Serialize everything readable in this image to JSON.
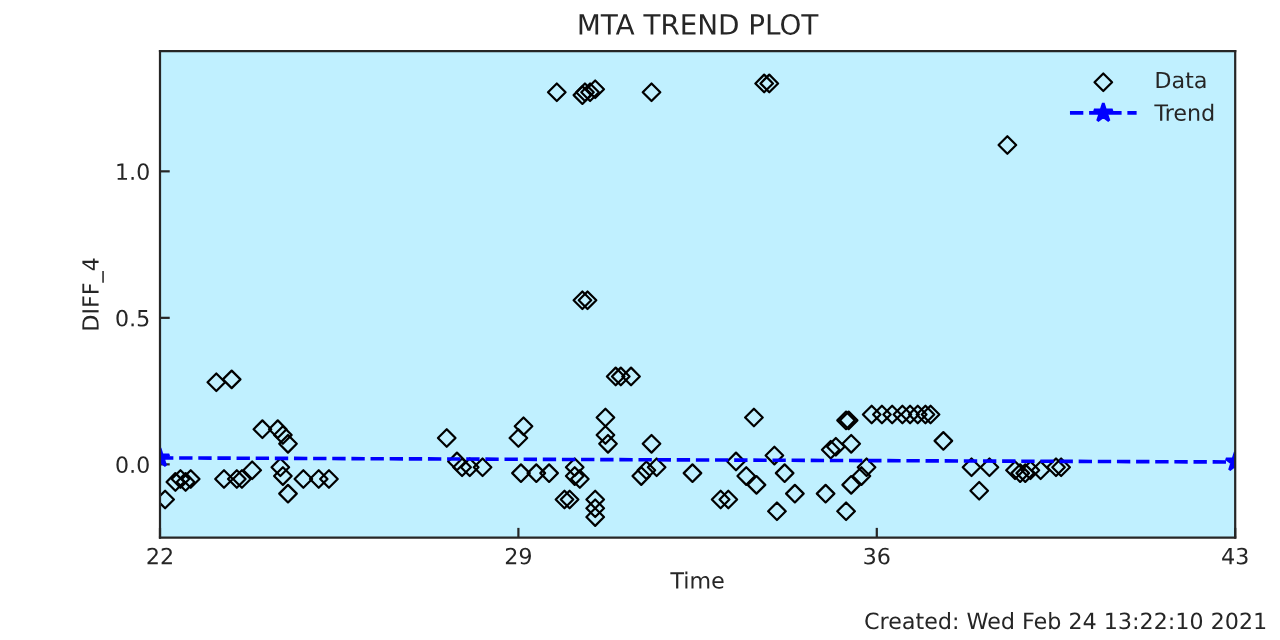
{
  "chart_data": {
    "type": "scatter",
    "title": "MTA TREND PLOT",
    "xlabel": "Time",
    "ylabel": "DIFF_4",
    "xlim": [
      22,
      43
    ],
    "xticks": [
      22,
      29,
      36,
      43
    ],
    "ylim": [
      -0.25,
      1.41
    ],
    "yticks": [
      {
        "value": 0.0,
        "label": "0.0"
      },
      {
        "value": 0.5,
        "label": "0.5"
      },
      {
        "value": 1.0,
        "label": "1.0"
      }
    ],
    "grid": false,
    "legend": "top right",
    "marker": "diamond",
    "annotations": [
      "Created: Wed Feb 24 13:22:10 2021"
    ],
    "series": [
      {
        "name": "Data",
        "color": "#000000",
        "x": [
          22.1,
          22.3,
          22.4,
          22.5,
          22.6,
          23.1,
          23.4,
          23.25,
          23.5,
          23.6,
          23.8,
          24.0,
          24.3,
          24.4,
          24.5,
          24.35,
          24.4,
          24.5,
          24.8,
          25.1,
          25.3,
          27.6,
          27.8,
          27.9,
          28.05,
          28.3,
          29.0,
          29.1,
          29.05,
          29.75,
          30.25,
          30.3,
          30.4,
          30.5,
          31.6,
          33.8,
          33.9,
          30.25,
          30.35,
          30.9,
          31.0,
          31.2,
          30.7,
          30.7,
          30.75,
          31.6,
          33.6,
          29.35,
          29.6,
          30.1,
          30.1,
          30.2,
          29.9,
          30.0,
          30.5,
          30.5,
          30.5,
          31.4,
          31.5,
          31.7,
          32.4,
          32.95,
          33.1,
          33.25,
          33.45,
          33.65,
          34.0,
          34.05,
          34.2,
          34.4,
          35.0,
          35.1,
          35.2,
          35.4,
          35.4,
          35.5,
          35.7,
          35.8,
          35.5,
          35.45,
          35.9,
          36.1,
          36.3,
          36.5,
          36.65,
          36.8,
          36.95,
          37.05,
          37.3,
          37.85,
          38.0,
          38.2,
          38.7,
          38.8,
          38.9,
          39.0,
          39.2,
          39.5,
          39.6,
          38.55
        ],
        "values": [
          -0.12,
          -0.06,
          -0.05,
          -0.06,
          -0.05,
          0.28,
          0.29,
          -0.05,
          -0.05,
          -0.05,
          -0.02,
          0.12,
          0.12,
          0.1,
          0.07,
          -0.01,
          -0.04,
          -0.1,
          -0.05,
          -0.05,
          -0.05,
          0.09,
          0.01,
          -0.01,
          -0.01,
          -0.01,
          0.09,
          0.13,
          -0.03,
          1.27,
          1.26,
          1.27,
          1.27,
          1.28,
          1.27,
          1.3,
          1.3,
          0.56,
          0.56,
          0.3,
          0.3,
          0.3,
          0.16,
          0.1,
          0.07,
          0.07,
          0.16,
          -0.03,
          -0.03,
          -0.04,
          -0.01,
          -0.05,
          -0.12,
          -0.12,
          -0.12,
          -0.15,
          -0.18,
          -0.04,
          -0.02,
          -0.01,
          -0.03,
          -0.12,
          -0.12,
          0.01,
          -0.04,
          -0.07,
          0.03,
          -0.16,
          -0.03,
          -0.1,
          -0.1,
          0.05,
          0.06,
          0.15,
          -0.16,
          -0.07,
          -0.04,
          -0.01,
          0.07,
          0.15,
          0.17,
          0.17,
          0.17,
          0.17,
          0.17,
          0.17,
          0.17,
          0.17,
          0.08,
          -0.01,
          -0.09,
          -0.01,
          -0.02,
          -0.03,
          -0.03,
          -0.02,
          -0.02,
          -0.01,
          -0.01,
          1.09
        ]
      },
      {
        "name": "Trend",
        "type": "line",
        "marker": "star",
        "line_style": "dashed",
        "color": "#0000ff",
        "x": [
          22,
          43
        ],
        "values": [
          0.022,
          0.008
        ]
      }
    ]
  }
}
